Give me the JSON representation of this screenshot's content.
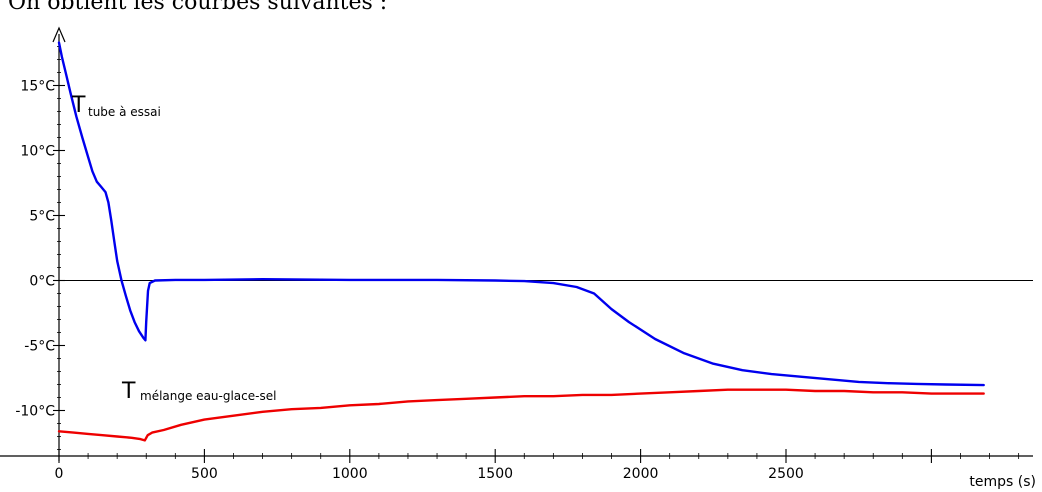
{
  "caption": "On obtient les courbes suivantes :",
  "chart_data": {
    "type": "line",
    "title": "",
    "xlabel": "temps (s)",
    "ylabel": "",
    "xlim": [
      0,
      3350
    ],
    "ylim": [
      -13.5,
      18.5
    ],
    "x_ticks": [
      0,
      500,
      1000,
      1500,
      2000,
      2500
    ],
    "x_tick_labels": [
      "0",
      "500",
      "1000",
      "1500",
      "2000",
      "2500"
    ],
    "y_ticks": [
      15,
      10,
      5,
      0,
      -5,
      -10
    ],
    "y_tick_labels": [
      "15°C",
      "10°C",
      "5°C",
      "0°C",
      "-5°C",
      "-10°C"
    ],
    "grid": false,
    "legend": "none",
    "reference_line_y": 0,
    "series": [
      {
        "label_main": "T",
        "label_sub": "tube à essai",
        "color": "#0000ee",
        "points": [
          [
            0,
            18.3
          ],
          [
            10,
            17.2
          ],
          [
            25,
            15.8
          ],
          [
            40,
            14.4
          ],
          [
            60,
            12.6
          ],
          [
            80,
            11.0
          ],
          [
            100,
            9.5
          ],
          [
            115,
            8.4
          ],
          [
            130,
            7.6
          ],
          [
            145,
            7.2
          ],
          [
            160,
            6.8
          ],
          [
            170,
            6.0
          ],
          [
            180,
            4.6
          ],
          [
            190,
            3.0
          ],
          [
            200,
            1.5
          ],
          [
            215,
            0.0
          ],
          [
            230,
            -1.2
          ],
          [
            245,
            -2.3
          ],
          [
            260,
            -3.2
          ],
          [
            275,
            -3.9
          ],
          [
            290,
            -4.4
          ],
          [
            297,
            -4.6
          ],
          [
            300,
            -3.2
          ],
          [
            306,
            -0.8
          ],
          [
            312,
            -0.2
          ],
          [
            330,
            0.0
          ],
          [
            400,
            0.05
          ],
          [
            500,
            0.05
          ],
          [
            700,
            0.1
          ],
          [
            1000,
            0.05
          ],
          [
            1300,
            0.05
          ],
          [
            1500,
            0.0
          ],
          [
            1600,
            -0.05
          ],
          [
            1700,
            -0.2
          ],
          [
            1780,
            -0.5
          ],
          [
            1840,
            -1.0
          ],
          [
            1900,
            -2.2
          ],
          [
            1960,
            -3.2
          ],
          [
            2050,
            -4.5
          ],
          [
            2150,
            -5.6
          ],
          [
            2250,
            -6.4
          ],
          [
            2350,
            -6.9
          ],
          [
            2450,
            -7.2
          ],
          [
            2550,
            -7.4
          ],
          [
            2650,
            -7.6
          ],
          [
            2750,
            -7.8
          ],
          [
            2850,
            -7.9
          ],
          [
            2950,
            -7.95
          ],
          [
            3050,
            -8.0
          ],
          [
            3180,
            -8.05
          ]
        ]
      },
      {
        "label_main": "T",
        "label_sub": "mélange eau-glace-sel",
        "color": "#ee0000",
        "points": [
          [
            0,
            -11.6
          ],
          [
            50,
            -11.7
          ],
          [
            100,
            -11.8
          ],
          [
            150,
            -11.9
          ],
          [
            200,
            -12.0
          ],
          [
            250,
            -12.1
          ],
          [
            280,
            -12.2
          ],
          [
            295,
            -12.3
          ],
          [
            305,
            -11.9
          ],
          [
            320,
            -11.7
          ],
          [
            360,
            -11.5
          ],
          [
            420,
            -11.1
          ],
          [
            500,
            -10.7
          ],
          [
            600,
            -10.4
          ],
          [
            700,
            -10.1
          ],
          [
            800,
            -9.9
          ],
          [
            900,
            -9.8
          ],
          [
            1000,
            -9.6
          ],
          [
            1100,
            -9.5
          ],
          [
            1200,
            -9.3
          ],
          [
            1300,
            -9.2
          ],
          [
            1400,
            -9.1
          ],
          [
            1500,
            -9.0
          ],
          [
            1600,
            -8.9
          ],
          [
            1700,
            -8.9
          ],
          [
            1800,
            -8.8
          ],
          [
            1900,
            -8.8
          ],
          [
            2000,
            -8.7
          ],
          [
            2100,
            -8.6
          ],
          [
            2200,
            -8.5
          ],
          [
            2300,
            -8.4
          ],
          [
            2400,
            -8.4
          ],
          [
            2500,
            -8.4
          ],
          [
            2600,
            -8.5
          ],
          [
            2700,
            -8.5
          ],
          [
            2800,
            -8.6
          ],
          [
            2900,
            -8.6
          ],
          [
            3000,
            -8.7
          ],
          [
            3100,
            -8.7
          ],
          [
            3180,
            -8.7
          ]
        ]
      }
    ]
  }
}
